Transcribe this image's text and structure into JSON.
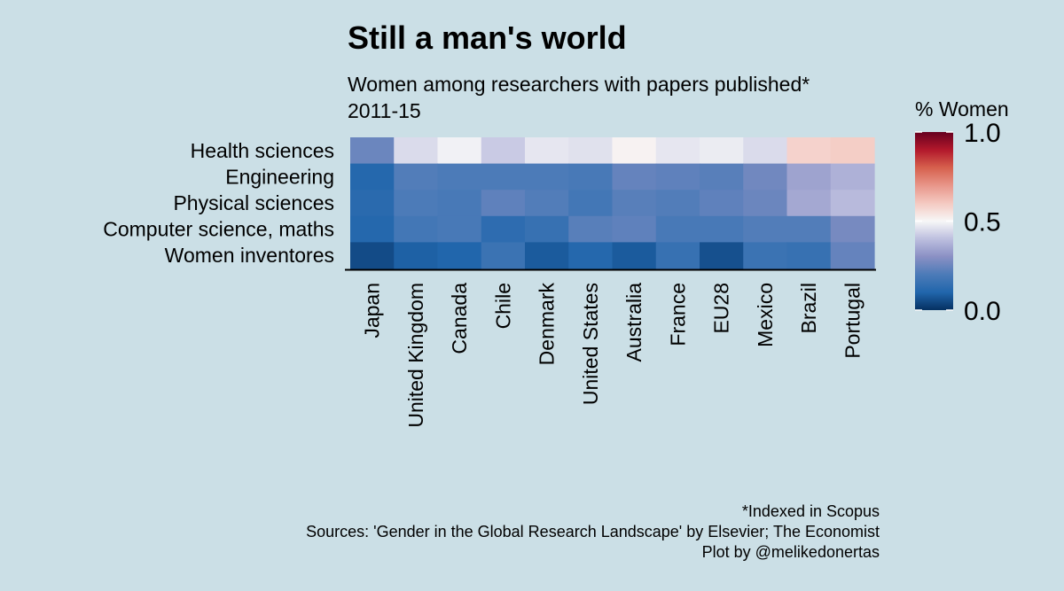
{
  "chart_data": {
    "type": "heatmap",
    "title": "Still a man's world",
    "subtitle": "Women among researchers with papers published*",
    "subtitle2": "2011-15",
    "x_categories": [
      "Japan",
      "United Kingdom",
      "Canada",
      "Chile",
      "Denmark",
      "United States",
      "Australia",
      "France",
      "EU28",
      "Mexico",
      "Brazil",
      "Portugal"
    ],
    "y_categories": [
      "Health sciences",
      "Engineering",
      "Physical sciences",
      "Computer science, maths",
      "Women inventores"
    ],
    "values": [
      [
        0.25,
        0.45,
        0.49,
        0.42,
        0.47,
        0.46,
        0.51,
        0.47,
        0.48,
        0.45,
        0.58,
        0.59
      ],
      [
        0.11,
        0.21,
        0.2,
        0.2,
        0.2,
        0.19,
        0.24,
        0.23,
        0.22,
        0.26,
        0.34,
        0.37
      ],
      [
        0.12,
        0.2,
        0.19,
        0.23,
        0.21,
        0.18,
        0.22,
        0.21,
        0.23,
        0.25,
        0.35,
        0.39
      ],
      [
        0.11,
        0.18,
        0.19,
        0.13,
        0.15,
        0.22,
        0.23,
        0.19,
        0.19,
        0.21,
        0.21,
        0.27
      ],
      [
        0.05,
        0.09,
        0.1,
        0.16,
        0.08,
        0.11,
        0.08,
        0.15,
        0.06,
        0.16,
        0.15,
        0.24
      ]
    ],
    "legend": {
      "title": "% Women",
      "ticks": [
        "0.0",
        "0.5",
        "1.0"
      ],
      "range": [
        0,
        1
      ],
      "placement": "right"
    },
    "caption": [
      "*Indexed in Scopus",
      "Sources: 'Gender in the Global Research Landscape' by Elsevier; The Economist",
      "Plot by @melikedonertas"
    ],
    "colors": {
      "low": "#053061",
      "mid": "#f7f7f7",
      "high": "#67001f",
      "background": "#cbdfe6"
    }
  }
}
